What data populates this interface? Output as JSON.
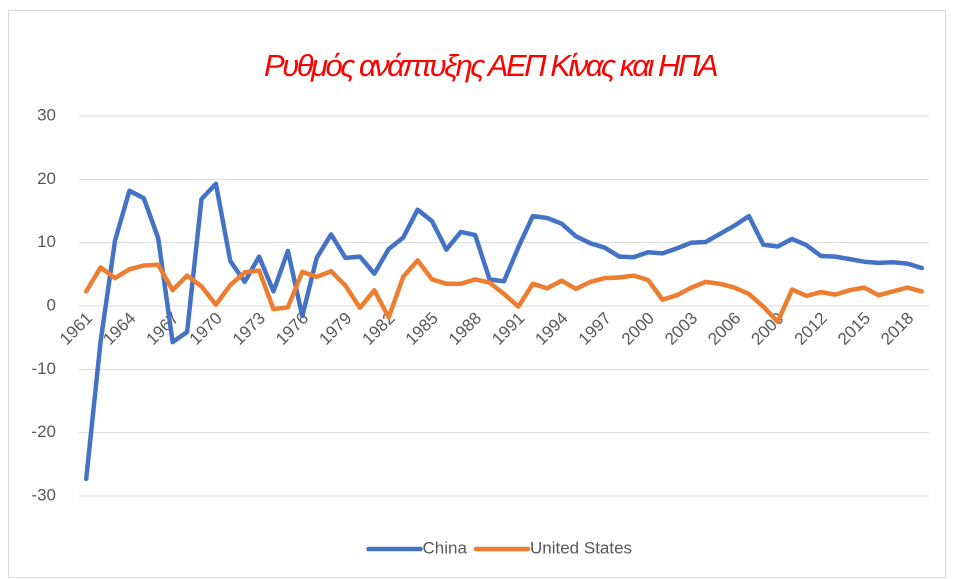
{
  "chart_data": {
    "type": "line",
    "title": "Ρυθμός ανάπτυξης ΑΕΠ Κίνας και ΗΠΑ",
    "categories": [
      "1961",
      null,
      null,
      "1964",
      null,
      null,
      "1967",
      null,
      null,
      "1970",
      null,
      null,
      "1973",
      null,
      null,
      "1976",
      null,
      null,
      "1979",
      null,
      null,
      "1982",
      null,
      null,
      "1985",
      null,
      null,
      "1988",
      null,
      null,
      "1991",
      null,
      null,
      "1994",
      null,
      null,
      "1997",
      null,
      null,
      "2000",
      null,
      null,
      "2003",
      null,
      null,
      "2006",
      null,
      null,
      "2009",
      null,
      null,
      "2012",
      null,
      null,
      "2015",
      null,
      null,
      "2018",
      null
    ],
    "series": [
      {
        "name": "China",
        "color": "#4472c4",
        "values": [
          -27.3,
          -5.6,
          10.3,
          18.2,
          17.0,
          10.7,
          -5.7,
          -4.1,
          16.9,
          19.3,
          7.1,
          3.8,
          7.8,
          2.3,
          8.7,
          -1.6,
          7.6,
          11.3,
          7.6,
          7.8,
          5.1,
          9.0,
          10.8,
          15.2,
          13.4,
          8.9,
          11.7,
          11.2,
          4.2,
          3.9,
          9.3,
          14.2,
          13.9,
          13.0,
          11.0,
          9.9,
          9.2,
          7.8,
          7.7,
          8.5,
          8.3,
          9.1,
          10.0,
          10.1,
          11.4,
          12.7,
          14.2,
          9.7,
          9.4,
          10.6,
          9.6,
          7.9,
          7.8,
          7.4,
          7.0,
          6.8,
          6.9,
          6.7,
          6.0
        ]
      },
      {
        "name": "United States",
        "color": "#ed7d31",
        "values": [
          2.3,
          6.1,
          4.4,
          5.8,
          6.4,
          6.5,
          2.5,
          4.8,
          3.1,
          0.2,
          3.3,
          5.3,
          5.6,
          -0.5,
          -0.2,
          5.4,
          4.6,
          5.5,
          3.2,
          -0.3,
          2.5,
          -1.8,
          4.6,
          7.2,
          4.2,
          3.5,
          3.5,
          4.2,
          3.7,
          1.9,
          -0.1,
          3.5,
          2.8,
          4.0,
          2.7,
          3.8,
          4.4,
          4.5,
          4.8,
          4.1,
          1.0,
          1.7,
          2.9,
          3.8,
          3.5,
          2.9,
          1.9,
          -0.1,
          -2.5,
          2.6,
          1.6,
          2.2,
          1.8,
          2.5,
          2.9,
          1.7,
          2.3,
          2.9,
          2.3
        ]
      }
    ],
    "ylim": [
      -30,
      30
    ],
    "yticks": [
      -30,
      -20,
      -10,
      0,
      10,
      20,
      30
    ],
    "grid": true,
    "legend": "bottom"
  }
}
